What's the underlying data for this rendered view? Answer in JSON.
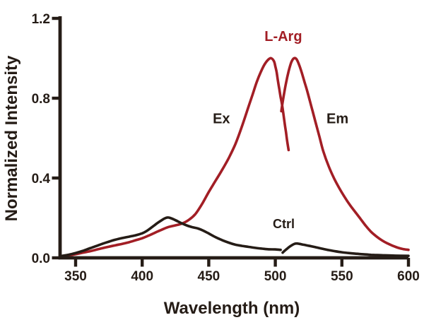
{
  "figure": {
    "background": "#ffffff",
    "curve_black": "#251c16",
    "curve_red": "#a21e25"
  },
  "chart_data": {
    "type": "line",
    "title": "",
    "xlabel": "Wavelength (nm)",
    "ylabel": "Normalized Intensity",
    "xlim": [
      338,
      600
    ],
    "ylim": [
      0,
      1.2
    ],
    "x_ticks": [
      350,
      400,
      450,
      500,
      550,
      600
    ],
    "x_tick_labels": [
      "350",
      "400",
      "450",
      "500",
      "550",
      "600"
    ],
    "y_ticks": [
      0.0,
      0.4,
      0.8,
      1.2
    ],
    "y_tick_labels": [
      "0.0",
      "0.4",
      "0.8",
      "1.2"
    ],
    "grid": false,
    "legend_position": "none",
    "series": [
      {
        "name": "L-Arg excitation spectrum (Ex)",
        "color": "#a21e25",
        "points": [
          [
            340,
            0.008
          ],
          [
            345,
            0.012
          ],
          [
            350,
            0.018
          ],
          [
            355,
            0.025
          ],
          [
            360,
            0.032
          ],
          [
            365,
            0.04
          ],
          [
            370,
            0.048
          ],
          [
            375,
            0.056
          ],
          [
            380,
            0.063
          ],
          [
            385,
            0.07
          ],
          [
            390,
            0.078
          ],
          [
            395,
            0.088
          ],
          [
            400,
            0.098
          ],
          [
            405,
            0.112
          ],
          [
            410,
            0.127
          ],
          [
            415,
            0.142
          ],
          [
            420,
            0.155
          ],
          [
            425,
            0.163
          ],
          [
            430,
            0.172
          ],
          [
            435,
            0.19
          ],
          [
            440,
            0.22
          ],
          [
            445,
            0.27
          ],
          [
            450,
            0.33
          ],
          [
            455,
            0.385
          ],
          [
            460,
            0.44
          ],
          [
            465,
            0.5
          ],
          [
            470,
            0.57
          ],
          [
            475,
            0.66
          ],
          [
            480,
            0.76
          ],
          [
            483,
            0.82
          ],
          [
            486,
            0.88
          ],
          [
            489,
            0.93
          ],
          [
            492,
            0.97
          ],
          [
            495,
            0.995
          ],
          [
            497,
            1.0
          ],
          [
            499,
            0.985
          ],
          [
            500,
            0.96
          ],
          [
            501,
            0.93
          ],
          [
            502,
            0.885
          ],
          [
            503,
            0.845
          ],
          [
            504,
            0.805
          ],
          [
            505,
            0.77
          ],
          [
            506,
            0.725
          ],
          [
            507,
            0.675
          ],
          [
            508,
            0.63
          ],
          [
            509,
            0.58
          ],
          [
            510,
            0.54
          ]
        ]
      },
      {
        "name": "L-Arg emission spectrum (Em)",
        "color": "#a21e25",
        "points": [
          [
            504.5,
            0.735
          ],
          [
            506,
            0.8
          ],
          [
            508,
            0.875
          ],
          [
            510,
            0.935
          ],
          [
            512,
            0.98
          ],
          [
            514,
            1.0
          ],
          [
            516,
            0.995
          ],
          [
            518,
            0.965
          ],
          [
            520,
            0.925
          ],
          [
            522,
            0.88
          ],
          [
            524,
            0.835
          ],
          [
            526,
            0.785
          ],
          [
            528,
            0.735
          ],
          [
            530,
            0.685
          ],
          [
            533,
            0.61
          ],
          [
            536,
            0.535
          ],
          [
            540,
            0.46
          ],
          [
            544,
            0.4
          ],
          [
            548,
            0.35
          ],
          [
            552,
            0.305
          ],
          [
            556,
            0.265
          ],
          [
            560,
            0.23
          ],
          [
            564,
            0.195
          ],
          [
            568,
            0.16
          ],
          [
            572,
            0.13
          ],
          [
            576,
            0.107
          ],
          [
            580,
            0.088
          ],
          [
            584,
            0.073
          ],
          [
            588,
            0.061
          ],
          [
            592,
            0.051
          ],
          [
            596,
            0.044
          ],
          [
            600,
            0.04
          ]
        ]
      },
      {
        "name": "Ctrl excitation spectrum",
        "color": "#251c16",
        "points": [
          [
            340,
            0.01
          ],
          [
            345,
            0.016
          ],
          [
            350,
            0.024
          ],
          [
            355,
            0.034
          ],
          [
            360,
            0.046
          ],
          [
            365,
            0.058
          ],
          [
            370,
            0.07
          ],
          [
            375,
            0.081
          ],
          [
            380,
            0.091
          ],
          [
            385,
            0.099
          ],
          [
            390,
            0.106
          ],
          [
            395,
            0.113
          ],
          [
            400,
            0.123
          ],
          [
            403,
            0.133
          ],
          [
            406,
            0.147
          ],
          [
            409,
            0.162
          ],
          [
            412,
            0.177
          ],
          [
            415,
            0.19
          ],
          [
            417,
            0.198
          ],
          [
            419,
            0.202
          ],
          [
            421,
            0.2
          ],
          [
            424,
            0.192
          ],
          [
            427,
            0.182
          ],
          [
            430,
            0.172
          ],
          [
            434,
            0.161
          ],
          [
            438,
            0.153
          ],
          [
            442,
            0.147
          ],
          [
            446,
            0.136
          ],
          [
            450,
            0.122
          ],
          [
            455,
            0.104
          ],
          [
            460,
            0.089
          ],
          [
            465,
            0.076
          ],
          [
            470,
            0.066
          ],
          [
            475,
            0.06
          ],
          [
            480,
            0.055
          ],
          [
            485,
            0.05
          ],
          [
            490,
            0.046
          ],
          [
            495,
            0.043
          ],
          [
            500,
            0.042
          ],
          [
            504,
            0.04
          ]
        ]
      },
      {
        "name": "Ctrl emission spectrum",
        "color": "#251c16",
        "points": [
          [
            505.5,
            0.026
          ],
          [
            508,
            0.041
          ],
          [
            511,
            0.057
          ],
          [
            514,
            0.069
          ],
          [
            516,
            0.072
          ],
          [
            518,
            0.07
          ],
          [
            521,
            0.066
          ],
          [
            524,
            0.062
          ],
          [
            527,
            0.058
          ],
          [
            531,
            0.052
          ],
          [
            535,
            0.046
          ],
          [
            540,
            0.039
          ],
          [
            545,
            0.033
          ],
          [
            550,
            0.028
          ],
          [
            555,
            0.024
          ],
          [
            560,
            0.021
          ],
          [
            566,
            0.018
          ],
          [
            572,
            0.015
          ],
          [
            580,
            0.013
          ],
          [
            590,
            0.011
          ],
          [
            600,
            0.01
          ]
        ]
      }
    ],
    "annotations": [
      {
        "text": "L-Arg",
        "x": 506,
        "y": 1.113,
        "color": "#a21e25",
        "size": 20
      },
      {
        "text": "Ex",
        "x": 459.5,
        "y": 0.7,
        "color": "#251c16",
        "size": 20
      },
      {
        "text": "Em",
        "x": 546.7,
        "y": 0.7,
        "color": "#251c16",
        "size": 20
      },
      {
        "text": "Ctrl",
        "x": 506.3,
        "y": 0.172,
        "color": "#251c16",
        "size": 18
      }
    ]
  }
}
